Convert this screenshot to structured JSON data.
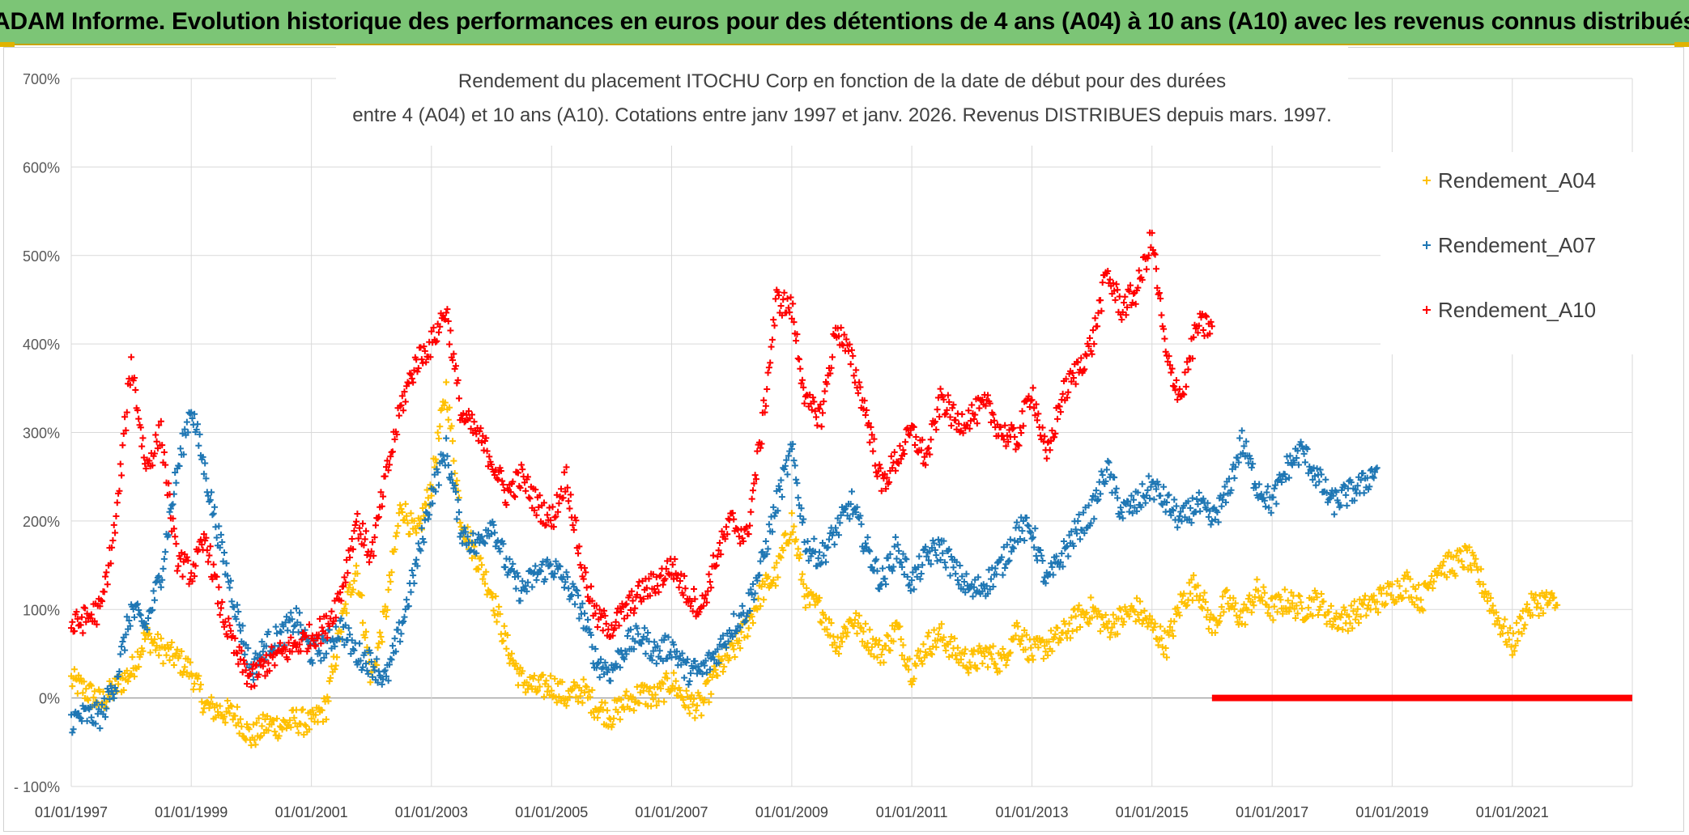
{
  "banner": {
    "text": "ADAM Informe. Evolution historique des performances en euros pour des détentions de 4 ans (A04) à 10 ans (A10) avec les revenus connus distribués"
  },
  "chart_data": {
    "type": "scatter",
    "title_line1": "Rendement du placement ITOCHU Corp en fonction de la date de début pour des durées",
    "title_line2": "entre 4 (A04) et 10 ans (A10). Cotations entre janv 1997 et janv. 2026. Revenus DISTRIBUES depuis mars. 1997.",
    "xlabel": "",
    "ylabel": "",
    "x_ticks": [
      "01/01/1997",
      "01/01/1999",
      "01/01/2001",
      "01/01/2003",
      "01/01/2005",
      "01/01/2007",
      "01/01/2009",
      "01/01/2011",
      "01/01/2013",
      "01/01/2015",
      "01/01/2017",
      "01/01/2019",
      "01/01/2021"
    ],
    "y_ticks": [
      "- 100%",
      "0%",
      "100%",
      "200%",
      "300%",
      "400%",
      "500%",
      "600%",
      "700%"
    ],
    "ylim": [
      -100,
      700
    ],
    "xlim": [
      "1997-01-01",
      "2023-01-01"
    ],
    "grid": true,
    "legend_position": "top-right",
    "marker": "+",
    "series": [
      {
        "name": "Rendement_A04",
        "color": "#ffc000",
        "points": [
          [
            "1997-01-01",
            20
          ],
          [
            "1997-04-01",
            8
          ],
          [
            "1997-07-01",
            -5
          ],
          [
            "1997-10-01",
            12
          ],
          [
            "1998-01-01",
            30
          ],
          [
            "1998-04-01",
            70
          ],
          [
            "1998-07-01",
            55
          ],
          [
            "1998-10-01",
            45
          ],
          [
            "1999-01-01",
            30
          ],
          [
            "1999-04-01",
            -10
          ],
          [
            "1999-07-01",
            -15
          ],
          [
            "1999-10-01",
            -20
          ],
          [
            "2000-01-01",
            -45
          ],
          [
            "2000-04-01",
            -30
          ],
          [
            "2000-07-01",
            -32
          ],
          [
            "2000-10-01",
            -25
          ],
          [
            "2001-01-01",
            -30
          ],
          [
            "2001-04-01",
            -10
          ],
          [
            "2001-07-01",
            80
          ],
          [
            "2001-10-01",
            150
          ],
          [
            "2002-01-01",
            20
          ],
          [
            "2002-04-01",
            100
          ],
          [
            "2002-07-01",
            220
          ],
          [
            "2002-10-01",
            180
          ],
          [
            "2003-01-01",
            240
          ],
          [
            "2003-04-01",
            350
          ],
          [
            "2003-07-01",
            200
          ],
          [
            "2003-10-01",
            160
          ],
          [
            "2004-01-01",
            120
          ],
          [
            "2004-04-01",
            60
          ],
          [
            "2004-07-01",
            20
          ],
          [
            "2004-10-01",
            10
          ],
          [
            "2005-01-01",
            15
          ],
          [
            "2005-04-01",
            0
          ],
          [
            "2005-07-01",
            10
          ],
          [
            "2005-10-01",
            -10
          ],
          [
            "2006-01-01",
            -20
          ],
          [
            "2006-04-01",
            -5
          ],
          [
            "2006-07-01",
            5
          ],
          [
            "2006-10-01",
            0
          ],
          [
            "2007-01-01",
            20
          ],
          [
            "2007-04-01",
            -5
          ],
          [
            "2007-07-01",
            -10
          ],
          [
            "2007-10-01",
            30
          ],
          [
            "2008-01-01",
            50
          ],
          [
            "2008-04-01",
            80
          ],
          [
            "2008-07-01",
            120
          ],
          [
            "2008-10-01",
            140
          ],
          [
            "2009-01-01",
            200
          ],
          [
            "2009-04-01",
            110
          ],
          [
            "2009-07-01",
            100
          ],
          [
            "2009-10-01",
            60
          ],
          [
            "2010-01-01",
            90
          ],
          [
            "2010-04-01",
            70
          ],
          [
            "2010-07-01",
            50
          ],
          [
            "2010-10-01",
            80
          ],
          [
            "2011-01-01",
            30
          ],
          [
            "2011-04-01",
            60
          ],
          [
            "2011-07-01",
            70
          ],
          [
            "2011-10-01",
            50
          ],
          [
            "2012-01-01",
            40
          ],
          [
            "2012-04-01",
            50
          ],
          [
            "2012-07-01",
            40
          ],
          [
            "2012-10-01",
            80
          ],
          [
            "2013-01-01",
            50
          ],
          [
            "2013-04-01",
            60
          ],
          [
            "2013-07-01",
            70
          ],
          [
            "2013-10-01",
            90
          ],
          [
            "2014-01-01",
            100
          ],
          [
            "2014-04-01",
            80
          ],
          [
            "2014-07-01",
            90
          ],
          [
            "2014-10-01",
            100
          ],
          [
            "2015-01-01",
            80
          ],
          [
            "2015-04-01",
            60
          ],
          [
            "2015-07-01",
            110
          ],
          [
            "2015-10-01",
            130
          ],
          [
            "2016-01-01",
            80
          ],
          [
            "2016-04-01",
            110
          ],
          [
            "2016-07-01",
            90
          ],
          [
            "2016-10-01",
            120
          ],
          [
            "2017-01-01",
            100
          ],
          [
            "2017-04-01",
            110
          ],
          [
            "2017-07-01",
            100
          ],
          [
            "2017-10-01",
            110
          ],
          [
            "2018-01-01",
            90
          ],
          [
            "2018-04-01",
            90
          ],
          [
            "2018-07-01",
            100
          ],
          [
            "2018-10-01",
            110
          ],
          [
            "2019-01-01",
            120
          ],
          [
            "2019-04-01",
            130
          ],
          [
            "2019-07-01",
            110
          ],
          [
            "2019-10-01",
            150
          ],
          [
            "2020-01-01",
            150
          ],
          [
            "2020-04-01",
            160
          ],
          [
            "2020-07-01",
            130
          ],
          [
            "2020-10-01",
            90
          ],
          [
            "2021-01-01",
            60
          ],
          [
            "2021-04-01",
            100
          ],
          [
            "2021-07-01",
            110
          ],
          [
            "2021-10-01",
            105
          ]
        ]
      },
      {
        "name": "Rendement_A07",
        "color": "#1f77b4",
        "points": [
          [
            "1997-01-01",
            -25
          ],
          [
            "1997-04-01",
            -20
          ],
          [
            "1997-07-01",
            -20
          ],
          [
            "1997-10-01",
            20
          ],
          [
            "1998-01-01",
            100
          ],
          [
            "1998-04-01",
            80
          ],
          [
            "1998-07-01",
            140
          ],
          [
            "1998-10-01",
            250
          ],
          [
            "1999-01-01",
            330
          ],
          [
            "1999-04-01",
            250
          ],
          [
            "1999-07-01",
            170
          ],
          [
            "1999-10-01",
            100
          ],
          [
            "2000-01-01",
            30
          ],
          [
            "2000-04-01",
            60
          ],
          [
            "2000-07-01",
            70
          ],
          [
            "2000-10-01",
            90
          ],
          [
            "2001-01-01",
            50
          ],
          [
            "2001-04-01",
            60
          ],
          [
            "2001-07-01",
            80
          ],
          [
            "2001-10-01",
            50
          ],
          [
            "2002-01-01",
            40
          ],
          [
            "2002-04-01",
            20
          ],
          [
            "2002-07-01",
            80
          ],
          [
            "2002-10-01",
            150
          ],
          [
            "2003-01-01",
            230
          ],
          [
            "2003-04-01",
            280
          ],
          [
            "2003-07-01",
            190
          ],
          [
            "2003-10-01",
            170
          ],
          [
            "2004-01-01",
            200
          ],
          [
            "2004-04-01",
            150
          ],
          [
            "2004-07-01",
            120
          ],
          [
            "2004-10-01",
            140
          ],
          [
            "2005-01-01",
            150
          ],
          [
            "2005-04-01",
            130
          ],
          [
            "2005-07-01",
            100
          ],
          [
            "2005-10-01",
            40
          ],
          [
            "2006-01-01",
            30
          ],
          [
            "2006-04-01",
            60
          ],
          [
            "2006-07-01",
            70
          ],
          [
            "2006-10-01",
            50
          ],
          [
            "2007-01-01",
            60
          ],
          [
            "2007-04-01",
            30
          ],
          [
            "2007-07-01",
            30
          ],
          [
            "2007-10-01",
            50
          ],
          [
            "2008-01-01",
            80
          ],
          [
            "2008-04-01",
            100
          ],
          [
            "2008-07-01",
            150
          ],
          [
            "2008-10-01",
            220
          ],
          [
            "2009-01-01",
            280
          ],
          [
            "2009-04-01",
            170
          ],
          [
            "2009-07-01",
            160
          ],
          [
            "2009-10-01",
            190
          ],
          [
            "2010-01-01",
            220
          ],
          [
            "2010-04-01",
            170
          ],
          [
            "2010-07-01",
            130
          ],
          [
            "2010-10-01",
            170
          ],
          [
            "2011-01-01",
            130
          ],
          [
            "2011-04-01",
            160
          ],
          [
            "2011-07-01",
            170
          ],
          [
            "2011-10-01",
            140
          ],
          [
            "2012-01-01",
            120
          ],
          [
            "2012-04-01",
            130
          ],
          [
            "2012-07-01",
            150
          ],
          [
            "2012-10-01",
            190
          ],
          [
            "2013-01-01",
            190
          ],
          [
            "2013-04-01",
            130
          ],
          [
            "2013-07-01",
            160
          ],
          [
            "2013-10-01",
            190
          ],
          [
            "2014-01-01",
            210
          ],
          [
            "2014-04-01",
            260
          ],
          [
            "2014-07-01",
            210
          ],
          [
            "2014-10-01",
            220
          ],
          [
            "2015-01-01",
            240
          ],
          [
            "2015-04-01",
            220
          ],
          [
            "2015-07-01",
            200
          ],
          [
            "2015-10-01",
            220
          ],
          [
            "2016-01-01",
            200
          ],
          [
            "2016-04-01",
            230
          ],
          [
            "2016-07-01",
            290
          ],
          [
            "2016-10-01",
            240
          ],
          [
            "2017-01-01",
            220
          ],
          [
            "2017-04-01",
            260
          ],
          [
            "2017-07-01",
            280
          ],
          [
            "2017-10-01",
            250
          ],
          [
            "2018-01-01",
            220
          ],
          [
            "2018-04-01",
            230
          ],
          [
            "2018-07-01",
            240
          ],
          [
            "2018-10-01",
            260
          ]
        ]
      },
      {
        "name": "Rendement_A10",
        "color": "#ff0000",
        "points": [
          [
            "1997-01-01",
            80
          ],
          [
            "1997-04-01",
            90
          ],
          [
            "1997-07-01",
            100
          ],
          [
            "1997-10-01",
            200
          ],
          [
            "1998-01-01",
            380
          ],
          [
            "1998-04-01",
            260
          ],
          [
            "1998-07-01",
            300
          ],
          [
            "1998-10-01",
            160
          ],
          [
            "1999-01-01",
            140
          ],
          [
            "1999-04-01",
            180
          ],
          [
            "1999-07-01",
            100
          ],
          [
            "1999-10-01",
            50
          ],
          [
            "2000-01-01",
            20
          ],
          [
            "2000-04-01",
            40
          ],
          [
            "2000-07-01",
            50
          ],
          [
            "2000-10-01",
            60
          ],
          [
            "2001-01-01",
            70
          ],
          [
            "2001-04-01",
            80
          ],
          [
            "2001-07-01",
            120
          ],
          [
            "2001-10-01",
            200
          ],
          [
            "2002-01-01",
            160
          ],
          [
            "2002-04-01",
            250
          ],
          [
            "2002-07-01",
            330
          ],
          [
            "2002-10-01",
            380
          ],
          [
            "2003-01-01",
            400
          ],
          [
            "2003-04-01",
            440
          ],
          [
            "2003-07-01",
            320
          ],
          [
            "2003-10-01",
            300
          ],
          [
            "2004-01-01",
            270
          ],
          [
            "2004-04-01",
            230
          ],
          [
            "2004-07-01",
            250
          ],
          [
            "2004-10-01",
            220
          ],
          [
            "2005-01-01",
            200
          ],
          [
            "2005-04-01",
            250
          ],
          [
            "2005-07-01",
            150
          ],
          [
            "2005-10-01",
            90
          ],
          [
            "2006-01-01",
            80
          ],
          [
            "2006-04-01",
            100
          ],
          [
            "2006-07-01",
            120
          ],
          [
            "2006-10-01",
            130
          ],
          [
            "2007-01-01",
            150
          ],
          [
            "2007-04-01",
            120
          ],
          [
            "2007-07-01",
            100
          ],
          [
            "2007-10-01",
            160
          ],
          [
            "2008-01-01",
            200
          ],
          [
            "2008-04-01",
            180
          ],
          [
            "2008-07-01",
            300
          ],
          [
            "2008-10-01",
            450
          ],
          [
            "2009-01-01",
            440
          ],
          [
            "2009-04-01",
            330
          ],
          [
            "2009-07-01",
            320
          ],
          [
            "2009-10-01",
            420
          ],
          [
            "2010-01-01",
            380
          ],
          [
            "2010-04-01",
            320
          ],
          [
            "2010-07-01",
            240
          ],
          [
            "2010-10-01",
            270
          ],
          [
            "2011-01-01",
            300
          ],
          [
            "2011-04-01",
            270
          ],
          [
            "2011-07-01",
            340
          ],
          [
            "2011-10-01",
            310
          ],
          [
            "2012-01-01",
            320
          ],
          [
            "2012-04-01",
            330
          ],
          [
            "2012-07-01",
            300
          ],
          [
            "2012-10-01",
            290
          ],
          [
            "2013-01-01",
            350
          ],
          [
            "2013-04-01",
            270
          ],
          [
            "2013-07-01",
            340
          ],
          [
            "2013-10-01",
            370
          ],
          [
            "2014-01-01",
            400
          ],
          [
            "2014-04-01",
            480
          ],
          [
            "2014-07-01",
            440
          ],
          [
            "2014-10-01",
            460
          ],
          [
            "2015-01-01",
            520
          ],
          [
            "2015-04-01",
            380
          ],
          [
            "2015-07-01",
            340
          ],
          [
            "2015-10-01",
            420
          ],
          [
            "2016-01-01",
            420
          ]
        ]
      },
      {
        "name": "",
        "color": "#ff0000",
        "flat_range": [
          "2016-01-01",
          "2023-01-01"
        ],
        "flat_value": 0
      }
    ]
  }
}
